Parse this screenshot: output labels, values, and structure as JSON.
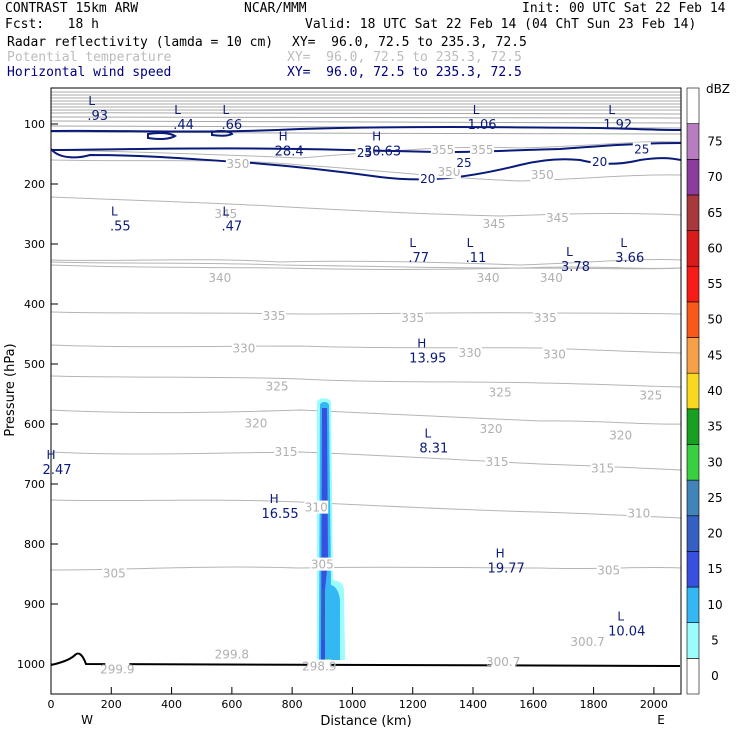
{
  "header": {
    "model": "CONTRAST 15km ARW",
    "center": "NCAR/MMM",
    "init": "Init: 00 UTC Sat 22 Feb 14",
    "fcst": "Fcst:   18 h",
    "valid": "Valid: 18 UTC Sat 22 Feb 14 (04 ChT Sun 23 Feb 14)",
    "fields": [
      {
        "name": "Radar reflectivity (lamda = 10 cm)",
        "xy": "XY=  96.0, 72.5 to 235.3, 72.5"
      },
      {
        "name": "Potential temperature",
        "xy": "XY=  96.0, 72.5 to 235.3, 72.5"
      },
      {
        "name": "Horizontal wind speed",
        "xy": "XY=  96.0, 72.5 to 235.3, 72.5"
      }
    ]
  },
  "chart_data": {
    "type": "cross-section",
    "xlabel": "Distance (km)",
    "ylabel": "Pressure (hPa)",
    "xlim": [
      0,
      2090
    ],
    "ylim": [
      1050,
      40
    ],
    "x_ticks": [
      0,
      200,
      400,
      600,
      800,
      1000,
      1200,
      1400,
      1600,
      1800,
      2000
    ],
    "y_ticks": [
      100,
      200,
      300,
      400,
      500,
      600,
      700,
      800,
      900,
      1000
    ],
    "x_end_labels": {
      "left": "W",
      "right": "E"
    },
    "colorbar": {
      "unit": "dBZ",
      "levels": [
        0,
        5,
        10,
        15,
        20,
        25,
        30,
        35,
        40,
        45,
        50,
        55,
        60,
        65,
        70,
        75
      ],
      "colors": [
        "#ffffff",
        "#9cfcfc",
        "#34b8f4",
        "#3850e0",
        "#3460c4",
        "#4084b8",
        "#38d040",
        "#18a020",
        "#f8d820",
        "#f8a048",
        "#f85818",
        "#f81c18",
        "#d81c1c",
        "#a8383c",
        "#8c3c9c",
        "#b87cc0"
      ]
    },
    "isentropes": [
      {
        "label": "355",
        "x": 1430,
        "p": 145
      },
      {
        "label": "355",
        "x": 1300,
        "p": 145
      },
      {
        "label": "350",
        "x": 620,
        "p": 168
      },
      {
        "label": "350",
        "x": 1320,
        "p": 182
      },
      {
        "label": "350",
        "x": 1630,
        "p": 187
      },
      {
        "label": "345",
        "x": 580,
        "p": 252
      },
      {
        "label": "345",
        "x": 1470,
        "p": 268
      },
      {
        "label": "345",
        "x": 1680,
        "p": 258
      },
      {
        "label": "340",
        "x": 560,
        "p": 358
      },
      {
        "label": "340",
        "x": 1450,
        "p": 358
      },
      {
        "label": "340",
        "x": 1660,
        "p": 358
      },
      {
        "label": "335",
        "x": 740,
        "p": 422
      },
      {
        "label": "335",
        "x": 1200,
        "p": 425
      },
      {
        "label": "335",
        "x": 1640,
        "p": 425
      },
      {
        "label": "330",
        "x": 640,
        "p": 476
      },
      {
        "label": "330",
        "x": 1390,
        "p": 483
      },
      {
        "label": "330",
        "x": 1670,
        "p": 486
      },
      {
        "label": "325",
        "x": 750,
        "p": 539
      },
      {
        "label": "325",
        "x": 1490,
        "p": 549
      },
      {
        "label": "325",
        "x": 1990,
        "p": 554
      },
      {
        "label": "320",
        "x": 680,
        "p": 601
      },
      {
        "label": "320",
        "x": 1460,
        "p": 610
      },
      {
        "label": "320",
        "x": 1890,
        "p": 621
      },
      {
        "label": "315",
        "x": 780,
        "p": 648
      },
      {
        "label": "315",
        "x": 1480,
        "p": 665
      },
      {
        "label": "315",
        "x": 1830,
        "p": 676
      },
      {
        "label": "310",
        "x": 880,
        "p": 741
      },
      {
        "label": "310",
        "x": 1950,
        "p": 751
      },
      {
        "label": "305",
        "x": 210,
        "p": 851
      },
      {
        "label": "305",
        "x": 900,
        "p": 836
      },
      {
        "label": "305",
        "x": 1850,
        "p": 846
      },
      {
        "label": "300.7",
        "x": 1500,
        "p": 998
      },
      {
        "label": "300.7",
        "x": 1780,
        "p": 965
      },
      {
        "label": "299.8",
        "x": 600,
        "p": 986
      },
      {
        "label": "299.9",
        "x": 220,
        "p": 1011
      },
      {
        "label": "298.9",
        "x": 890,
        "p": 1006
      }
    ],
    "wind_contours": [
      {
        "label": "25",
        "x": 1040,
        "p": 150
      },
      {
        "label": "25",
        "x": 1370,
        "p": 167
      },
      {
        "label": "25",
        "x": 1960,
        "p": 144
      },
      {
        "label": "20",
        "x": 1250,
        "p": 193
      },
      {
        "label": "20",
        "x": 1820,
        "p": 165
      }
    ],
    "wind_extrema": [
      {
        "type": "L",
        "value": ".93",
        "x": 155,
        "p": 82
      },
      {
        "type": "L",
        "value": ".44",
        "x": 440,
        "p": 97
      },
      {
        "type": "L",
        "value": ".66",
        "x": 600,
        "p": 97
      },
      {
        "type": "L",
        "value": "1.06",
        "x": 1430,
        "p": 97
      },
      {
        "type": "L",
        "value": "1.92",
        "x": 1880,
        "p": 97
      },
      {
        "type": "H",
        "value": "28.4",
        "x": 790,
        "p": 141
      },
      {
        "type": "H",
        "value": "30.63",
        "x": 1100,
        "p": 141
      },
      {
        "type": "L",
        "value": ".55",
        "x": 230,
        "p": 266
      },
      {
        "type": "L",
        "value": ".47",
        "x": 600,
        "p": 266
      },
      {
        "type": "L",
        "value": ".77",
        "x": 1220,
        "p": 318
      },
      {
        "type": "L",
        "value": ".11",
        "x": 1410,
        "p": 318
      },
      {
        "type": "L",
        "value": "3.78",
        "x": 1740,
        "p": 333
      },
      {
        "type": "L",
        "value": "3.66",
        "x": 1920,
        "p": 318
      },
      {
        "type": "H",
        "value": "13.95",
        "x": 1250,
        "p": 486
      },
      {
        "type": "L",
        "value": "8.31",
        "x": 1270,
        "p": 636
      },
      {
        "type": "H",
        "value": "2.47",
        "x": 20,
        "p": 672
      },
      {
        "type": "H",
        "value": "16.55",
        "x": 760,
        "p": 745
      },
      {
        "type": "H",
        "value": "19.77",
        "x": 1510,
        "p": 836
      },
      {
        "type": "L",
        "value": "10.04",
        "x": 1910,
        "p": 941
      }
    ]
  }
}
